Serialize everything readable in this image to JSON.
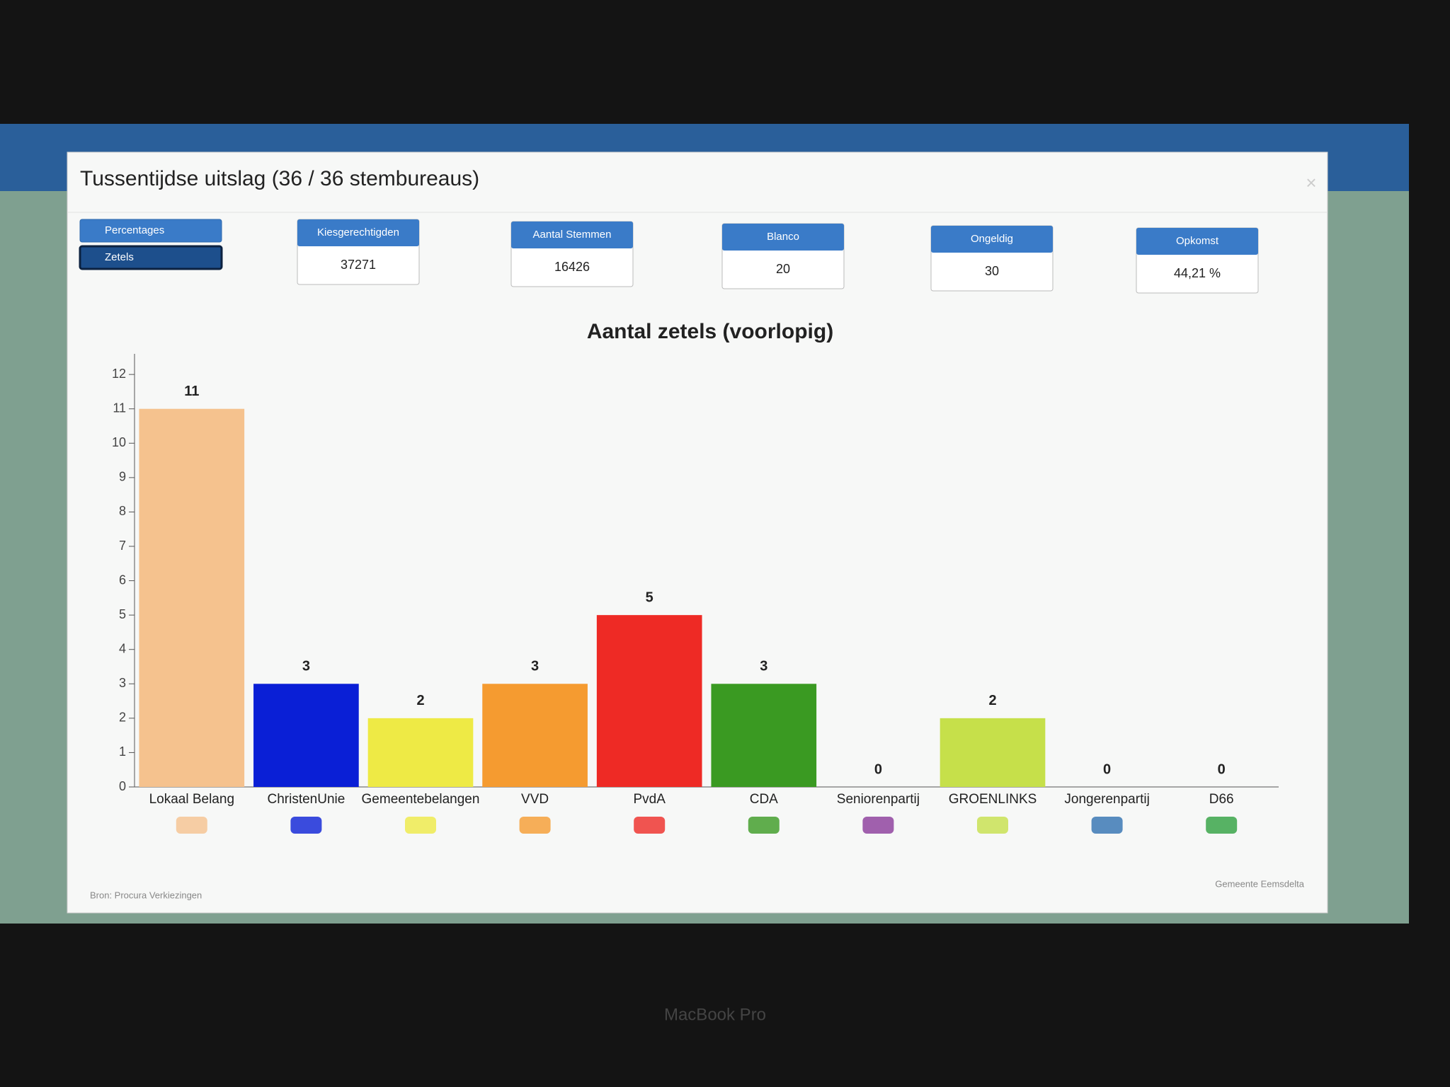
{
  "header": {
    "title": "Tussentijdse uitslag (36 / 36 stembureaus)",
    "close": "×"
  },
  "buttons": [
    "Percentages",
    "Zetels"
  ],
  "stats": [
    {
      "label": "Kiesgerechtigden",
      "value": 37271
    },
    {
      "label": "Aantal Stemmen",
      "value": 16426
    },
    {
      "label": "Blanco",
      "value": 20
    },
    {
      "label": "Ongeldig",
      "value": 30
    },
    {
      "label": "Opkomst",
      "value": "44,21 %"
    }
  ],
  "chart_data": {
    "type": "bar",
    "title": "Aantal zetels (voorlopig)",
    "categories": [
      "Lokaal Belang",
      "ChristenUnie",
      "Gemeentebelangen",
      "VVD",
      "PvdA",
      "CDA",
      "Seniorenpartij",
      "GROENLINKS",
      "Jongerenpartij",
      "D66"
    ],
    "values": [
      11,
      3,
      2,
      3,
      5,
      3,
      0,
      2,
      0,
      0
    ],
    "colors": [
      "#f5c28e",
      "#0a1fd6",
      "#eeea45",
      "#f59b30",
      "#ee2a25",
      "#3a9a22",
      "#8a3a9a",
      "#c6e04a",
      "#3070b0",
      "#2ea03e"
    ],
    "ylim": [
      0,
      12.6
    ],
    "yticks": [
      0,
      1,
      2,
      3,
      4,
      5,
      6,
      7,
      8,
      9,
      10,
      11,
      12
    ]
  },
  "footer": {
    "source": "Bron: Procura Verkiezingen",
    "owner": "Gemeente Eemsdelta"
  },
  "device": "MacBook Pro"
}
